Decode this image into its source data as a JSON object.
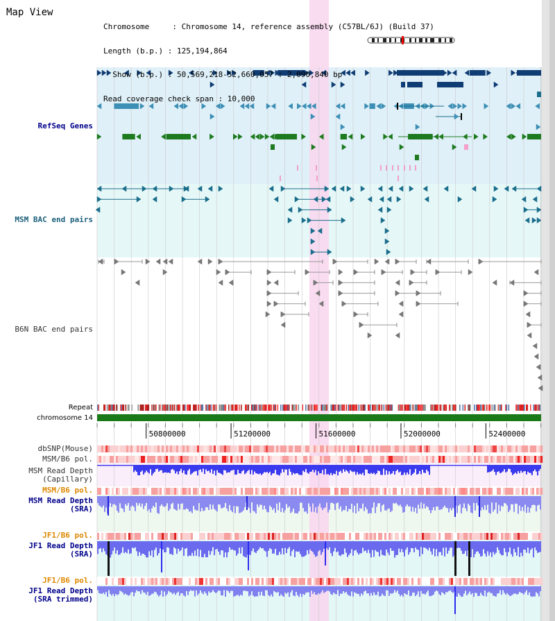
{
  "header": {
    "title": "Map View",
    "lines": [
      "Chromosome     : Chromosome 14, reference assembly (C57BL/6J) (Build 37)",
      "Length (b.p.) : 125,194,864",
      "  Show (b.p.) : 50,569,218-52,660,057 : 2,090,840 bp",
      "Read coverage check span : 10,000"
    ]
  },
  "tracks": {
    "refseq": "RefSeq Genes",
    "msm_bac": "MSM BAC end pairs",
    "b6n_bac": "B6N BAC end pairs",
    "repeat": "Repeat",
    "chromosome": "chromosome 14",
    "dbsnp": "dbSNP(Mouse)",
    "msm_b6_pol_1": "MSM/B6 pol.",
    "msm_depth_cap_1": "MSM Read Depth",
    "msm_depth_cap_2": "(Capillary)",
    "msm_b6_pol_2": "MSM/B6 pol.",
    "msm_depth_sra_1": "MSM Read Depth",
    "msm_depth_sra_2": "(SRA)",
    "jf1_b6_pol_1": "JF1/B6 pol.",
    "jf1_depth_sra_1": "JF1 Read Depth",
    "jf1_depth_sra_2": "(SRA)",
    "jf1_b6_pol_2": "JF1/B6 pol.",
    "jf1_depth_trim_1": "JF1 Read Depth",
    "jf1_depth_trim_2": "(SRA trimmed)"
  },
  "axis": {
    "ticks": [
      "50800000",
      "51200000",
      "51600000",
      "52000000",
      "52400000"
    ]
  },
  "colors": {
    "refseq_bg": "#dff0f8",
    "msm_bac_bg": "#e6f7f7",
    "highlight": "#f9d6ef",
    "gene_dark": "#0f3c73",
    "gene_mid": "#3d8fb5",
    "gene_green": "#1e7a1e",
    "msm_bac": "#1a6e8c",
    "b6n_bac": "#777777",
    "chromosome": "#1a7a1a",
    "depth_blue": "#3333ee",
    "depth_lilac": "#8888ee",
    "pol_red": "#ee3333",
    "label_navy": "#00008b",
    "label_teal": "#1a5f7a",
    "label_orange": "#dd8800",
    "label_gray": "#333333"
  },
  "tick_marks": {
    "labels": [],
    "range": [
      50569218,
      52660057
    ],
    "major": [
      50800000,
      51200000,
      51600000,
      52000000,
      52400000
    ]
  },
  "icons": {
    "ideogram": "chromosome-ideogram-icon"
  }
}
